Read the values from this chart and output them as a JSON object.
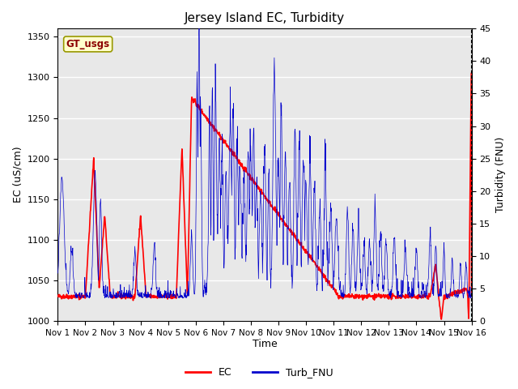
{
  "title": "Jersey Island EC, Turbidity",
  "xlabel": "Time",
  "ylabel_left": "EC (uS/cm)",
  "ylabel_right": "Turbidity (FNU)",
  "ylim_left": [
    1000,
    1360
  ],
  "ylim_right": [
    0,
    45
  ],
  "background_color": "#ffffff",
  "plot_bg_color": "#e8e8e8",
  "grid_color": "#ffffff",
  "legend_label_ec": "EC",
  "legend_label_turb": "Turb_FNU",
  "box_label": "GT_usgs",
  "ec_color": "#ff0000",
  "turb_color": "#0000cc",
  "xtick_labels": [
    "Nov 1",
    "Nov 2",
    "Nov 3",
    "Nov 4",
    "Nov 5",
    "Nov 6",
    "Nov 7",
    "Nov 8",
    "Nov 9",
    "Nov 10",
    "Nov 11",
    "Nov 12",
    "Nov 13",
    "Nov 14",
    "Nov 15",
    "Nov 16"
  ],
  "yticks_left": [
    1000,
    1050,
    1100,
    1150,
    1200,
    1250,
    1300,
    1350
  ],
  "yticks_right": [
    0,
    5,
    10,
    15,
    20,
    25,
    30,
    35,
    40,
    45
  ]
}
